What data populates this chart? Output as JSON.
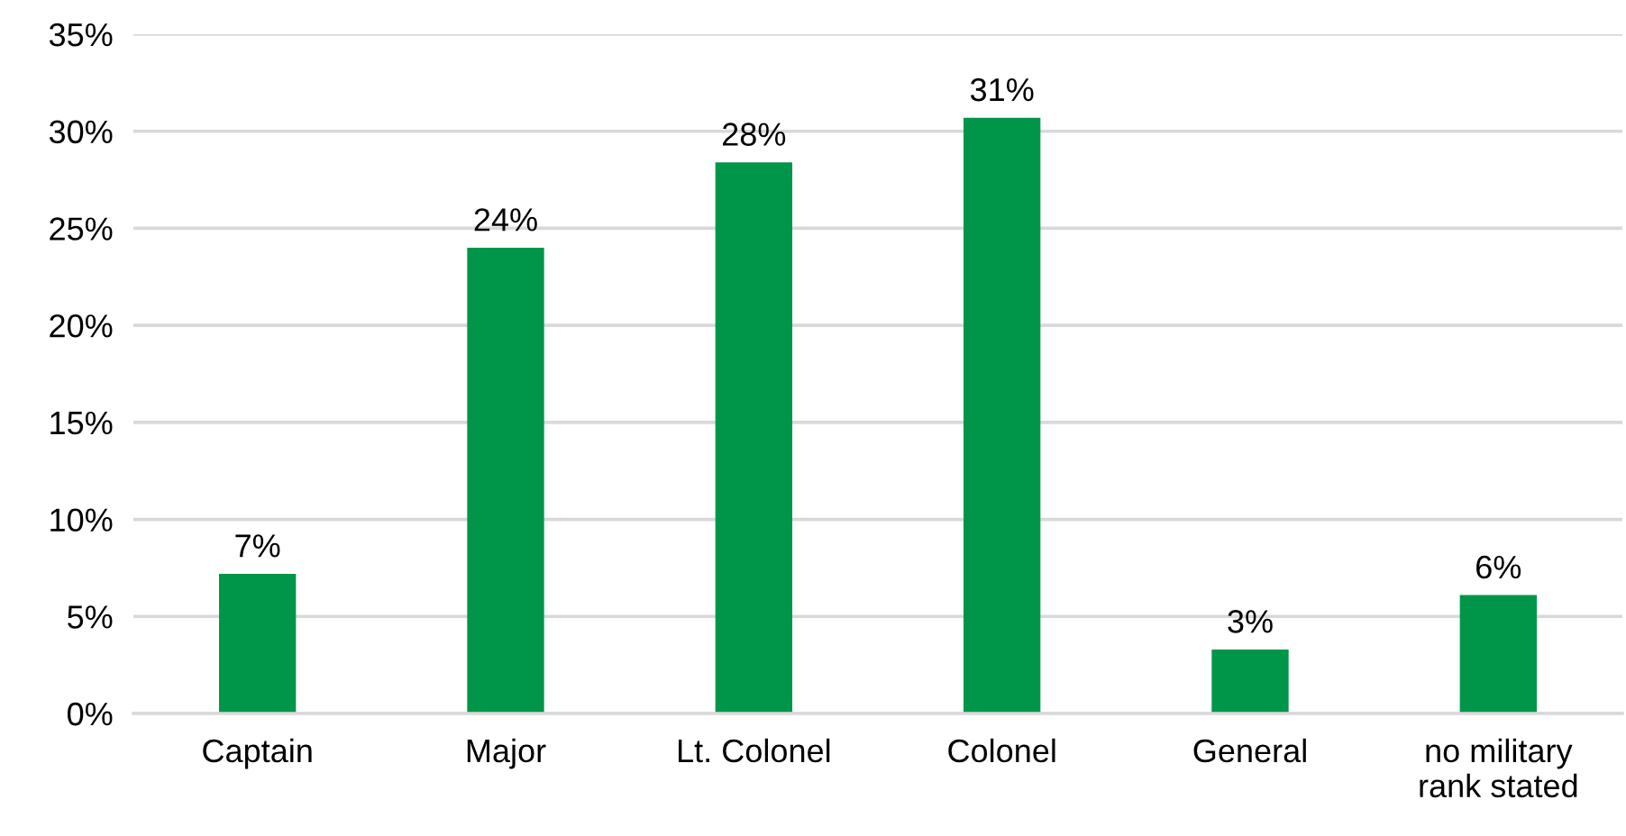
{
  "chart_data": {
    "type": "bar",
    "categories": [
      "Captain",
      "Major",
      "Lt. Colonel",
      "Colonel",
      "General",
      "no military\nrank stated"
    ],
    "values": [
      7.2,
      24.0,
      28.4,
      30.7,
      3.3,
      6.1
    ],
    "value_labels": [
      "7%",
      "24%",
      "28%",
      "31%",
      "3%",
      "6%"
    ],
    "color": "#00964a",
    "ylim": [
      0,
      35
    ],
    "yticks": [
      {
        "value": 0,
        "label": "0%"
      },
      {
        "value": 5,
        "label": "5%"
      },
      {
        "value": 10,
        "label": "10%"
      },
      {
        "value": 15,
        "label": "15%"
      },
      {
        "value": 20,
        "label": "20%"
      },
      {
        "value": 25,
        "label": "25%"
      },
      {
        "value": 30,
        "label": "30%"
      },
      {
        "value": 35,
        "label": "35%"
      }
    ],
    "grid": "y"
  }
}
